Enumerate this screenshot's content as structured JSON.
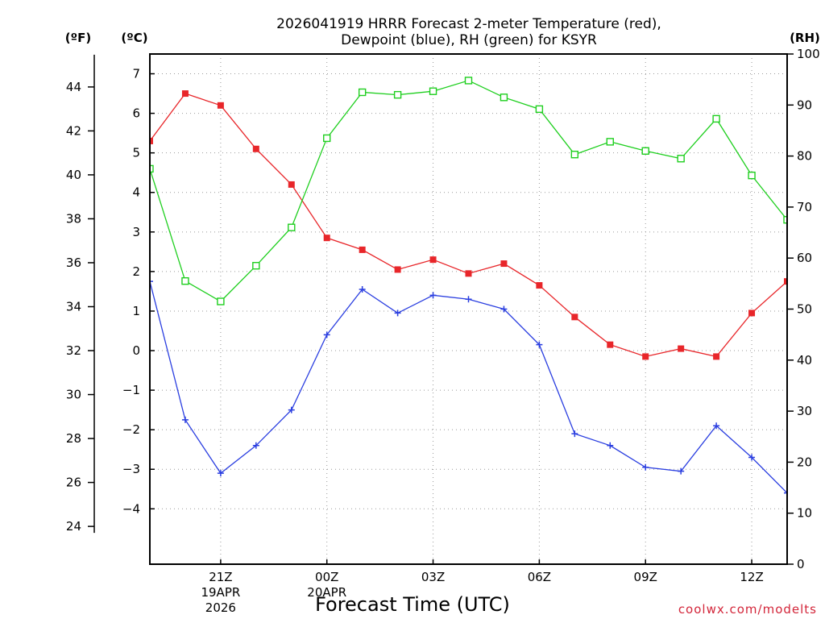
{
  "chart_data": {
    "type": "line",
    "title_line1": "2026041919 HRRR Forecast 2-meter Temperature (red),",
    "title_line2": "Dewpoint (blue), RH (green) for KSYR",
    "xlabel": "Forecast Time (UTC)",
    "credit": "coolwx.com/modelts",
    "unit_f": "(ºF)",
    "unit_c": "(ºC)",
    "unit_rh": "(RH)",
    "x_range": [
      0,
      18
    ],
    "x_ticks": [
      {
        "x": 2,
        "label": "21Z",
        "sub1": "19APR",
        "sub2": "2026"
      },
      {
        "x": 5,
        "label": "00Z",
        "sub1": "20APR",
        "sub2": ""
      },
      {
        "x": 8,
        "label": "03Z",
        "sub1": "",
        "sub2": ""
      },
      {
        "x": 11,
        "label": "06Z",
        "sub1": "",
        "sub2": ""
      },
      {
        "x": 14,
        "label": "09Z",
        "sub1": "",
        "sub2": ""
      },
      {
        "x": 17,
        "label": "12Z",
        "sub1": "",
        "sub2": ""
      }
    ],
    "c_range": [
      -5.4,
      7.5
    ],
    "c_ticks": [
      7,
      6,
      5,
      4,
      3,
      2,
      1,
      0,
      -1,
      -2,
      -3,
      -4
    ],
    "c_tick_labels": [
      "7",
      "6",
      "5",
      "4",
      "3",
      "2",
      "1",
      "0",
      "−1",
      "−2",
      "−3",
      "−4"
    ],
    "f_ticks": [
      44,
      42,
      40,
      38,
      36,
      34,
      32,
      30,
      28,
      26,
      24
    ],
    "f_tick_labels": [
      "44",
      "42",
      "40",
      "38",
      "36",
      "34",
      "32",
      "30",
      "28",
      "26",
      "24"
    ],
    "rh_range": [
      0,
      100
    ],
    "rh_ticks": [
      100,
      90,
      80,
      70,
      60,
      50,
      40,
      30,
      20,
      10,
      0
    ],
    "rh_tick_labels": [
      "100",
      "90",
      "80",
      "70",
      "60",
      "50",
      "40",
      "30",
      "20",
      "10",
      "0"
    ],
    "series": [
      {
        "name": "2-meter Temperature",
        "axis": "C",
        "color": "#e8262a",
        "marker": "filled-square",
        "x": [
          0,
          1,
          2,
          3,
          4,
          5,
          6,
          7,
          8,
          9,
          10,
          11,
          12,
          13,
          14,
          15,
          16,
          17,
          18
        ],
        "values": [
          5.3,
          6.5,
          6.2,
          5.1,
          4.2,
          2.85,
          2.55,
          2.05,
          2.3,
          1.95,
          2.2,
          1.65,
          0.85,
          0.15,
          -0.15,
          0.05,
          -0.15,
          0.95,
          1.75
        ]
      },
      {
        "name": "Dewpoint",
        "axis": "C",
        "color": "#2a3ee0",
        "marker": "plus",
        "x": [
          0,
          1,
          2,
          3,
          4,
          5,
          6,
          7,
          8,
          9,
          10,
          11,
          12,
          13,
          14,
          15,
          16,
          17,
          18
        ],
        "values": [
          1.75,
          -1.75,
          -3.1,
          -2.4,
          -1.5,
          0.4,
          1.55,
          0.95,
          1.4,
          1.3,
          1.05,
          0.15,
          -2.1,
          -2.4,
          -2.95,
          -3.05,
          -1.9,
          -2.7,
          -3.6
        ]
      },
      {
        "name": "RH",
        "axis": "RH",
        "color": "#1fcf1f",
        "marker": "open-square",
        "x": [
          0,
          1,
          2,
          3,
          4,
          5,
          6,
          7,
          8,
          9,
          10,
          11,
          12,
          13,
          14,
          15,
          16,
          17,
          18
        ],
        "values": [
          77.5,
          55.5,
          51.5,
          58.5,
          66,
          83.5,
          92.5,
          92,
          92.7,
          94.8,
          91.5,
          89.2,
          80.3,
          82.8,
          81,
          79.5,
          87.3,
          76.2,
          67.5
        ]
      }
    ]
  }
}
